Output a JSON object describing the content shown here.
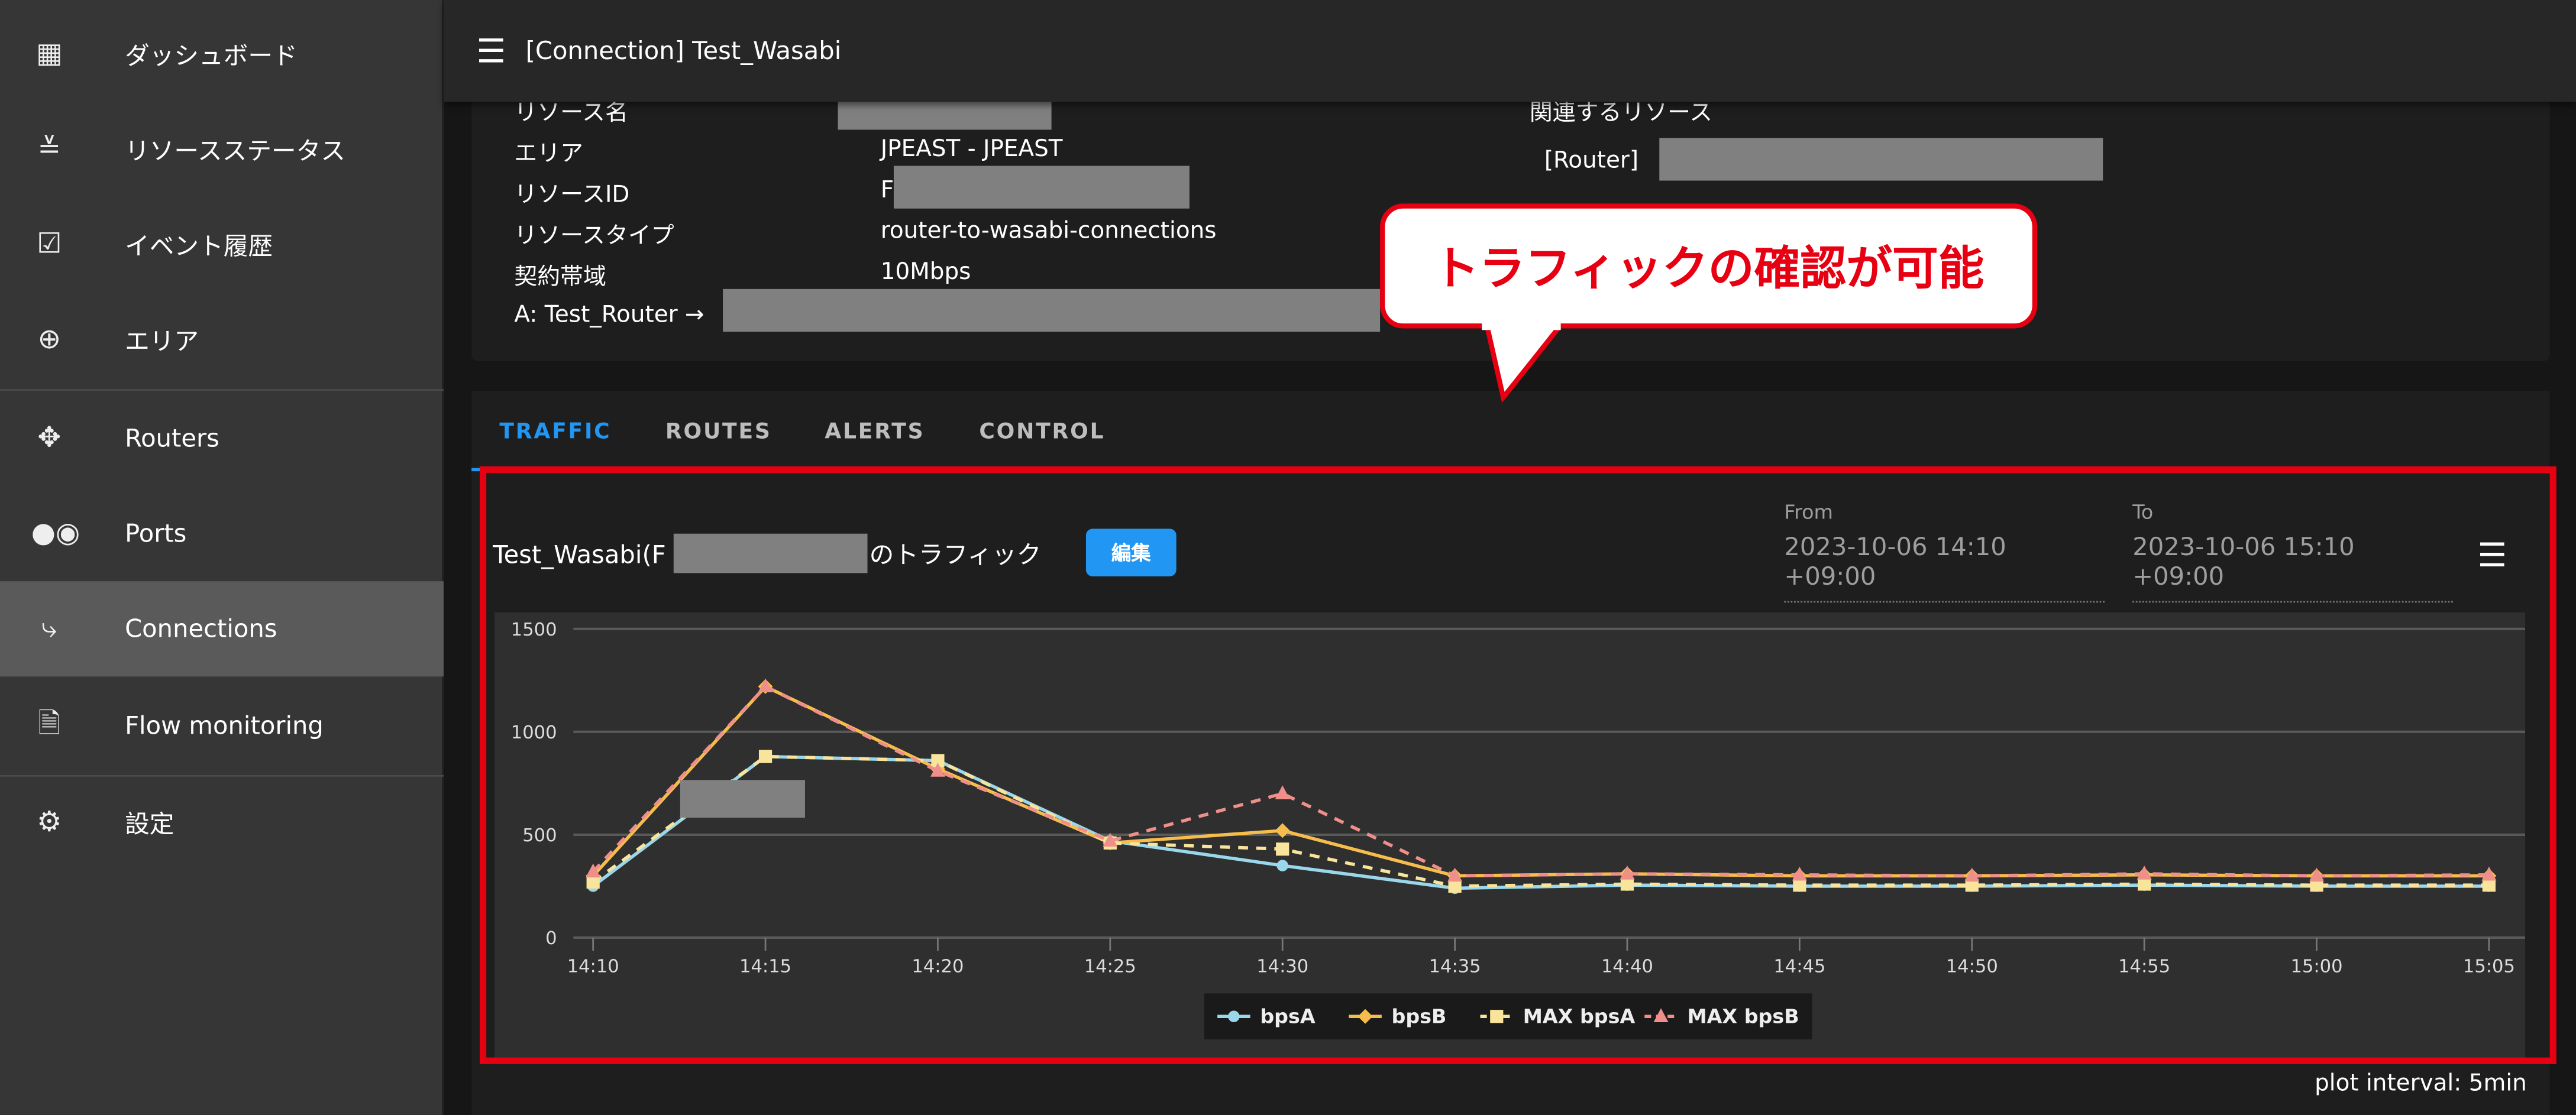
{
  "sidebar": {
    "items": [
      {
        "label": "ダッシュボード",
        "icon": "grid-icon"
      },
      {
        "label": "リソースステータス",
        "icon": "checklist-icon"
      },
      {
        "label": "イベント履歴",
        "icon": "calendar-check-icon"
      },
      {
        "label": "エリア",
        "icon": "globe-icon"
      },
      {
        "label": "Routers",
        "icon": "router-icon"
      },
      {
        "label": "Ports",
        "icon": "ports-icon"
      },
      {
        "label": "Connections",
        "icon": "connection-icon",
        "active": true
      },
      {
        "label": "Flow monitoring",
        "icon": "file-export-icon"
      },
      {
        "label": "設定",
        "icon": "gear-icon"
      }
    ]
  },
  "header": {
    "title": "[Connection] Test_Wasabi"
  },
  "info": {
    "name_label": "リソース名",
    "area_label": "エリア",
    "area_value": "JPEAST - JPEAST",
    "id_label": "リソースID",
    "id_value": "F",
    "type_label": "リソースタイプ",
    "type_value": "router-to-wasabi-connections",
    "bw_label": "契約帯域",
    "bw_value": "10Mbps",
    "path": "A: Test_Router →",
    "related_label": "関連するリソース",
    "related_router": "[Router]"
  },
  "callout": "トラフィックの確認が可能",
  "tabs": [
    "TRAFFIC",
    "ROUTES",
    "ALERTS",
    "CONTROL"
  ],
  "traffic": {
    "title_prefix": "Test_Wasabi(F",
    "title_suffix": ")のトラフィック",
    "edit": "編集",
    "from_label": "From",
    "from_value": "2023-10-06 14:10 +09:00",
    "to_label": "To",
    "to_value": "2023-10-06 15:10 +09:00",
    "plot_interval": "plot interval: 5min"
  },
  "chart_data": {
    "type": "line",
    "x": [
      "14:10",
      "14:15",
      "14:20",
      "14:25",
      "14:30",
      "14:35",
      "14:40",
      "14:45",
      "14:50",
      "14:55",
      "15:00",
      "15:05"
    ],
    "ylim": [
      0,
      1500
    ],
    "yticks": [
      "0",
      "500",
      "1000",
      "1500"
    ],
    "grid": true,
    "legend": "bottom",
    "series": [
      {
        "name": "bpsA",
        "color": "#9ad7ea",
        "marker": "circle",
        "dashed": false,
        "values": [
          250,
          880,
          860,
          470,
          350,
          240,
          255,
          250,
          250,
          255,
          250,
          250
        ]
      },
      {
        "name": "bpsB",
        "color": "#f7bd4c",
        "marker": "diamond",
        "dashed": false,
        "values": [
          300,
          1220,
          820,
          460,
          520,
          300,
          310,
          300,
          300,
          305,
          300,
          300
        ]
      },
      {
        "name": "MAX bpsA",
        "color": "#f8e49a",
        "marker": "square",
        "dashed": true,
        "values": [
          270,
          880,
          860,
          460,
          430,
          250,
          260,
          255,
          255,
          260,
          255,
          255
        ]
      },
      {
        "name": "MAX bpsB",
        "color": "#ef8f8a",
        "marker": "triangle",
        "dashed": true,
        "values": [
          320,
          1220,
          810,
          470,
          700,
          300,
          310,
          305,
          300,
          310,
          300,
          305
        ]
      }
    ]
  }
}
